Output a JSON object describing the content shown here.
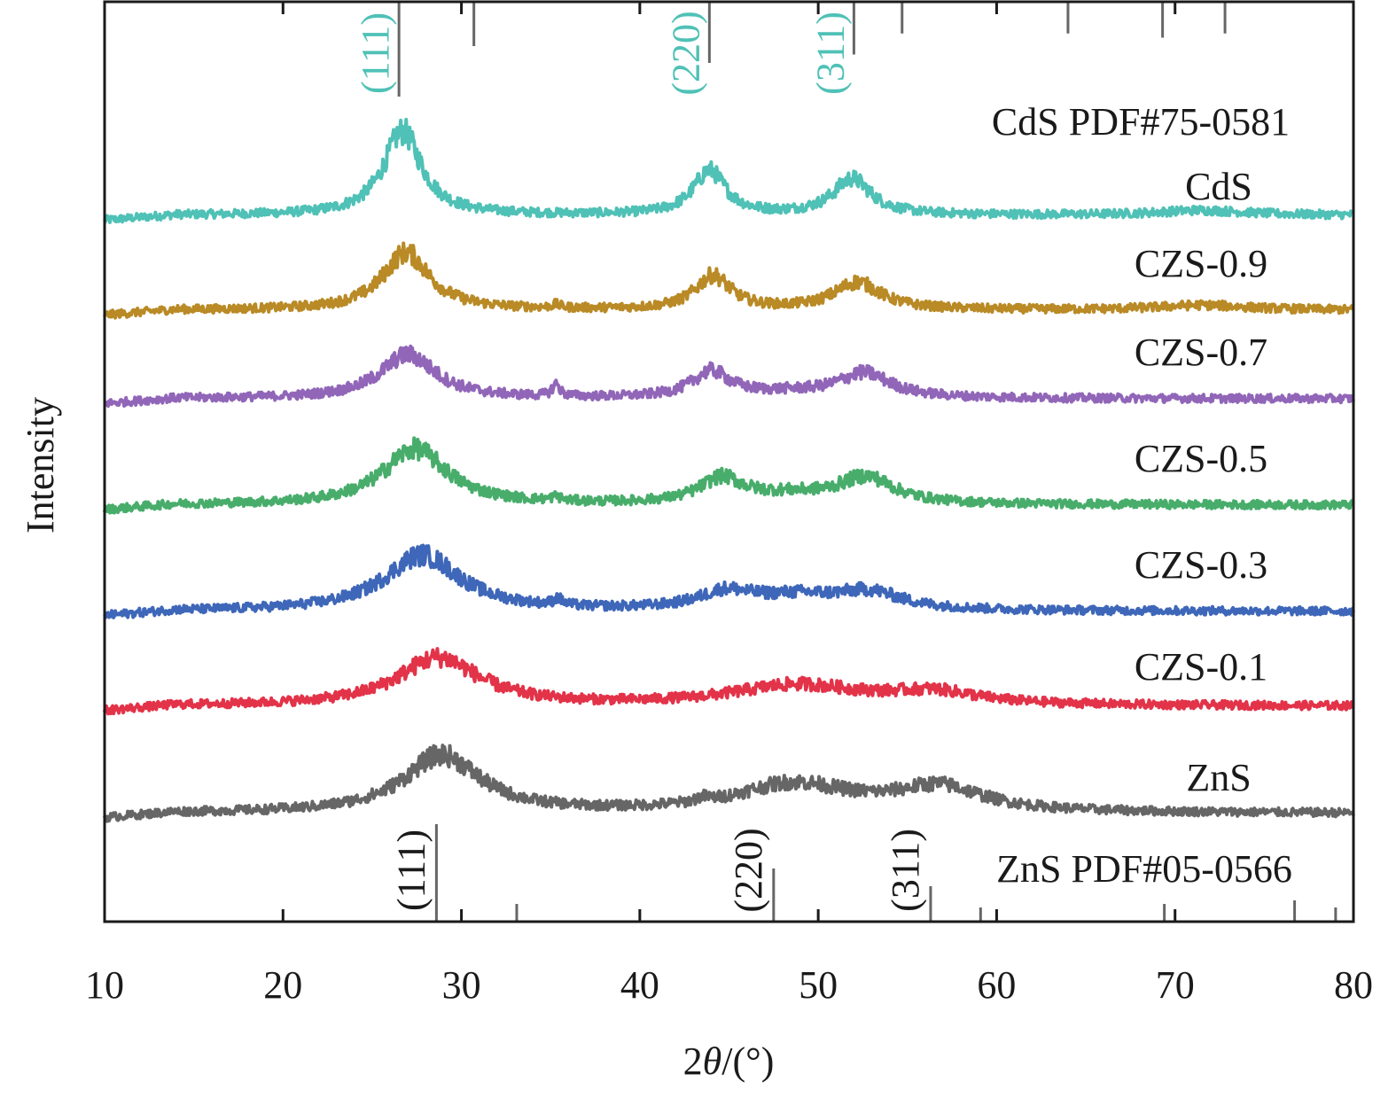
{
  "chart_data": {
    "type": "line",
    "title": "",
    "xlabel": "2θ/(°)",
    "xlabel_parts": {
      "prefix": "2",
      "italic": "θ",
      "suffix": "/(°)"
    },
    "ylabel": "Intensity",
    "xlim": [
      10,
      80
    ],
    "xticks": [
      10,
      20,
      30,
      40,
      50,
      60,
      70,
      80
    ],
    "xtick_labels": [
      "10",
      "20",
      "30",
      "40",
      "50",
      "60",
      "70",
      "80"
    ],
    "yticks": [],
    "grid": false,
    "legend": "inline-labels-right",
    "series": [
      {
        "name": "CdS",
        "color": "#4fc1b6",
        "offset": 6,
        "baseline": 0.0,
        "peaks": [
          {
            "center": 26.7,
            "height": 1.05,
            "width": 1.3
          },
          {
            "center": 43.9,
            "height": 0.55,
            "width": 1.1
          },
          {
            "center": 51.9,
            "height": 0.45,
            "width": 1.3
          },
          {
            "center": 71.5,
            "height": 0.06,
            "width": 3.0
          }
        ]
      },
      {
        "name": "CZS-0.9",
        "color": "#b98a25",
        "offset": 5,
        "baseline": 0.0,
        "peaks": [
          {
            "center": 26.9,
            "height": 0.72,
            "width": 1.6
          },
          {
            "center": 44.1,
            "height": 0.42,
            "width": 1.2
          },
          {
            "center": 52.2,
            "height": 0.34,
            "width": 1.6
          },
          {
            "center": 35.3,
            "height": 0.04,
            "width": 0.3
          },
          {
            "center": 71.5,
            "height": 0.06,
            "width": 3.0
          }
        ]
      },
      {
        "name": "CZS-0.7",
        "color": "#9166b8",
        "offset": 4,
        "baseline": 0.0,
        "peaks": [
          {
            "center": 27.0,
            "height": 0.55,
            "width": 1.9
          },
          {
            "center": 44.0,
            "height": 0.32,
            "width": 1.3
          },
          {
            "center": 52.6,
            "height": 0.3,
            "width": 1.8
          },
          {
            "center": 35.3,
            "height": 0.15,
            "width": 0.25
          },
          {
            "center": 48.5,
            "height": 0.06,
            "width": 3.0
          }
        ]
      },
      {
        "name": "CZS-0.5",
        "color": "#48ad6b",
        "offset": 3,
        "baseline": 0.0,
        "peaks": [
          {
            "center": 27.4,
            "height": 0.7,
            "width": 2.2
          },
          {
            "center": 44.6,
            "height": 0.3,
            "width": 1.5
          },
          {
            "center": 52.7,
            "height": 0.32,
            "width": 1.9
          },
          {
            "center": 48.5,
            "height": 0.1,
            "width": 3.0
          },
          {
            "center": 35.3,
            "height": 0.05,
            "width": 0.3
          }
        ]
      },
      {
        "name": "CZS-0.3",
        "color": "#3e67b9",
        "offset": 2,
        "baseline": 0.0,
        "peaks": [
          {
            "center": 27.8,
            "height": 0.7,
            "width": 2.6
          },
          {
            "center": 44.8,
            "height": 0.2,
            "width": 1.8
          },
          {
            "center": 48.8,
            "height": 0.16,
            "width": 3.2
          },
          {
            "center": 52.9,
            "height": 0.2,
            "width": 2.2
          },
          {
            "center": 35.4,
            "height": 0.08,
            "width": 0.3
          }
        ]
      },
      {
        "name": "CZS-0.1",
        "color": "#e33349",
        "offset": 1,
        "baseline": 0.0,
        "peaks": [
          {
            "center": 28.7,
            "height": 0.6,
            "width": 2.8
          },
          {
            "center": 48.8,
            "height": 0.25,
            "width": 4.5
          },
          {
            "center": 56.5,
            "height": 0.15,
            "width": 3.0
          }
        ]
      },
      {
        "name": "ZnS",
        "color": "#666666",
        "offset": 0,
        "baseline": 0.0,
        "peaks": [
          {
            "center": 28.9,
            "height": 0.72,
            "width": 2.6
          },
          {
            "center": 48.6,
            "height": 0.35,
            "width": 4.0
          },
          {
            "center": 56.8,
            "height": 0.3,
            "width": 3.0
          },
          {
            "center": 43.5,
            "height": 0.05,
            "width": 0.4
          }
        ]
      }
    ],
    "reference_patterns": [
      {
        "name": "CdS PDF#75-0581",
        "position": "top",
        "line_color": "#666666",
        "label_color": "#4fc1b6",
        "lines": [
          {
            "two_theta": 26.5,
            "rel_intensity": 1.0,
            "hkl": "(111)"
          },
          {
            "two_theta": 30.7,
            "rel_intensity": 0.4,
            "hkl": ""
          },
          {
            "two_theta": 43.9,
            "rel_intensity": 0.6,
            "hkl": "(220)"
          },
          {
            "two_theta": 52.0,
            "rel_intensity": 0.5,
            "hkl": "(311)"
          },
          {
            "two_theta": 54.7,
            "rel_intensity": 0.25,
            "hkl": ""
          },
          {
            "two_theta": 64.0,
            "rel_intensity": 0.25,
            "hkl": ""
          },
          {
            "two_theta": 69.3,
            "rel_intensity": 0.3,
            "hkl": ""
          },
          {
            "two_theta": 72.8,
            "rel_intensity": 0.25,
            "hkl": ""
          }
        ]
      },
      {
        "name": "ZnS PDF#05-0566",
        "position": "bottom",
        "line_color": "#666666",
        "label_color": "#1a1a1a",
        "lines": [
          {
            "two_theta": 28.6,
            "rel_intensity": 1.0,
            "hkl": "(111)"
          },
          {
            "two_theta": 33.1,
            "rel_intensity": 0.1,
            "hkl": ""
          },
          {
            "two_theta": 47.5,
            "rel_intensity": 0.5,
            "hkl": "(220)"
          },
          {
            "two_theta": 56.3,
            "rel_intensity": 0.3,
            "hkl": "(311)"
          },
          {
            "two_theta": 59.1,
            "rel_intensity": 0.06,
            "hkl": ""
          },
          {
            "two_theta": 69.4,
            "rel_intensity": 0.1,
            "hkl": ""
          },
          {
            "two_theta": 76.7,
            "rel_intensity": 0.14,
            "hkl": ""
          },
          {
            "two_theta": 79.0,
            "rel_intensity": 0.06,
            "hkl": ""
          }
        ]
      }
    ]
  }
}
